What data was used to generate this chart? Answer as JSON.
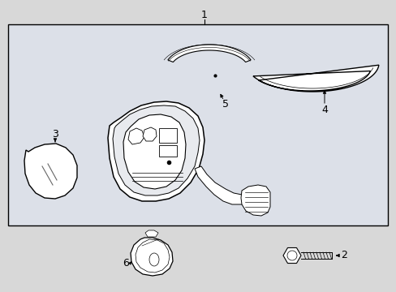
{
  "bg_color": "#d8d8d8",
  "box_bg": "#dce0e8",
  "line_color": "#000000",
  "med_line": "#666666",
  "fig_w": 4.89,
  "fig_h": 3.6,
  "dpi": 100
}
